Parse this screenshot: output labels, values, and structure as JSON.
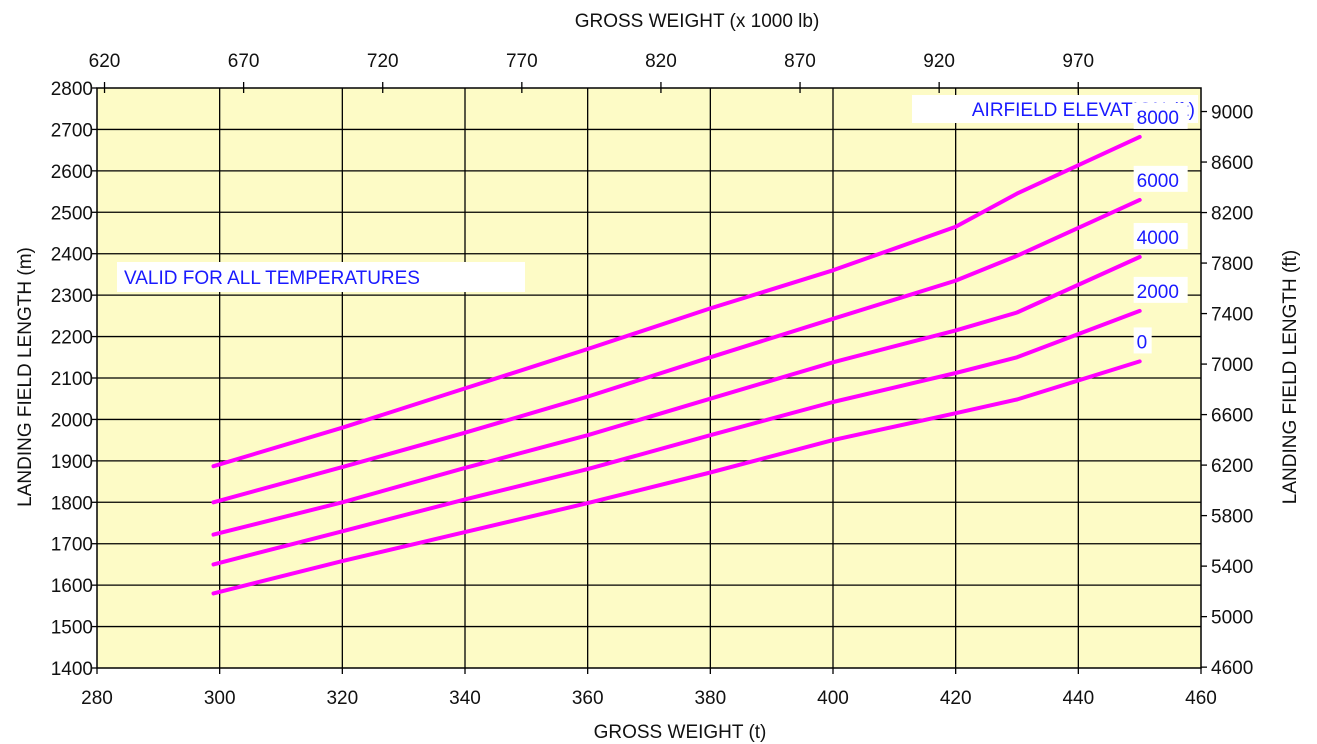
{
  "chart_data": {
    "type": "line",
    "x_bottom": {
      "label": "GROSS WEIGHT (t)",
      "range": [
        280,
        460
      ],
      "ticks": [
        280,
        300,
        320,
        340,
        360,
        380,
        400,
        420,
        440,
        460
      ]
    },
    "x_top": {
      "label": "GROSS WEIGHT (x 1000 lb)",
      "ticks": [
        620,
        670,
        720,
        770,
        820,
        870,
        920,
        970
      ],
      "conversion_lb_per_t": 2.20462
    },
    "y_left": {
      "label": "LANDING FIELD LENGTH (m)",
      "range": [
        1400,
        2800
      ],
      "ticks": [
        1400,
        1500,
        1600,
        1700,
        1800,
        1900,
        2000,
        2100,
        2200,
        2300,
        2400,
        2500,
        2600,
        2700,
        2800
      ]
    },
    "y_right": {
      "label": "LANDING FIELD LENGTH (ft)",
      "ticks": [
        4600,
        5000,
        5400,
        5800,
        6200,
        6600,
        7000,
        7400,
        7800,
        8200,
        8600,
        9000
      ],
      "conversion_ft_per_m": 3.28084
    },
    "grid": true,
    "legend_title": "AIRFIELD ELEVATION (ft)",
    "note": "VALID FOR ALL TEMPERATURES",
    "series": [
      {
        "name": "0",
        "x": [
          299,
          320,
          340,
          360,
          380,
          400,
          420,
          430,
          450
        ],
        "y": [
          1580,
          1658,
          1728,
          1798,
          1872,
          1950,
          2015,
          2048,
          2140
        ]
      },
      {
        "name": "2000",
        "x": [
          299,
          320,
          340,
          360,
          380,
          400,
          420,
          430,
          450
        ],
        "y": [
          1650,
          1730,
          1807,
          1880,
          1962,
          2042,
          2112,
          2150,
          2262
        ]
      },
      {
        "name": "4000",
        "x": [
          299,
          320,
          340,
          360,
          380,
          400,
          420,
          430,
          450
        ],
        "y": [
          1722,
          1800,
          1883,
          1962,
          2050,
          2138,
          2215,
          2258,
          2392
        ]
      },
      {
        "name": "6000",
        "x": [
          299,
          320,
          340,
          360,
          380,
          400,
          420,
          430,
          450
        ],
        "y": [
          1800,
          1885,
          1968,
          2055,
          2150,
          2243,
          2335,
          2395,
          2530
        ]
      },
      {
        "name": "8000",
        "x": [
          299,
          320,
          340,
          360,
          380,
          400,
          420,
          430,
          450
        ],
        "y": [
          1887,
          1980,
          2075,
          2170,
          2268,
          2360,
          2465,
          2545,
          2682
        ]
      }
    ],
    "colors": {
      "plot_bg": "#fdfbc6",
      "line": "#ff00ff",
      "grid": "#000000",
      "annotation": "#1a1aff",
      "label_bg": "#ffffff"
    }
  }
}
